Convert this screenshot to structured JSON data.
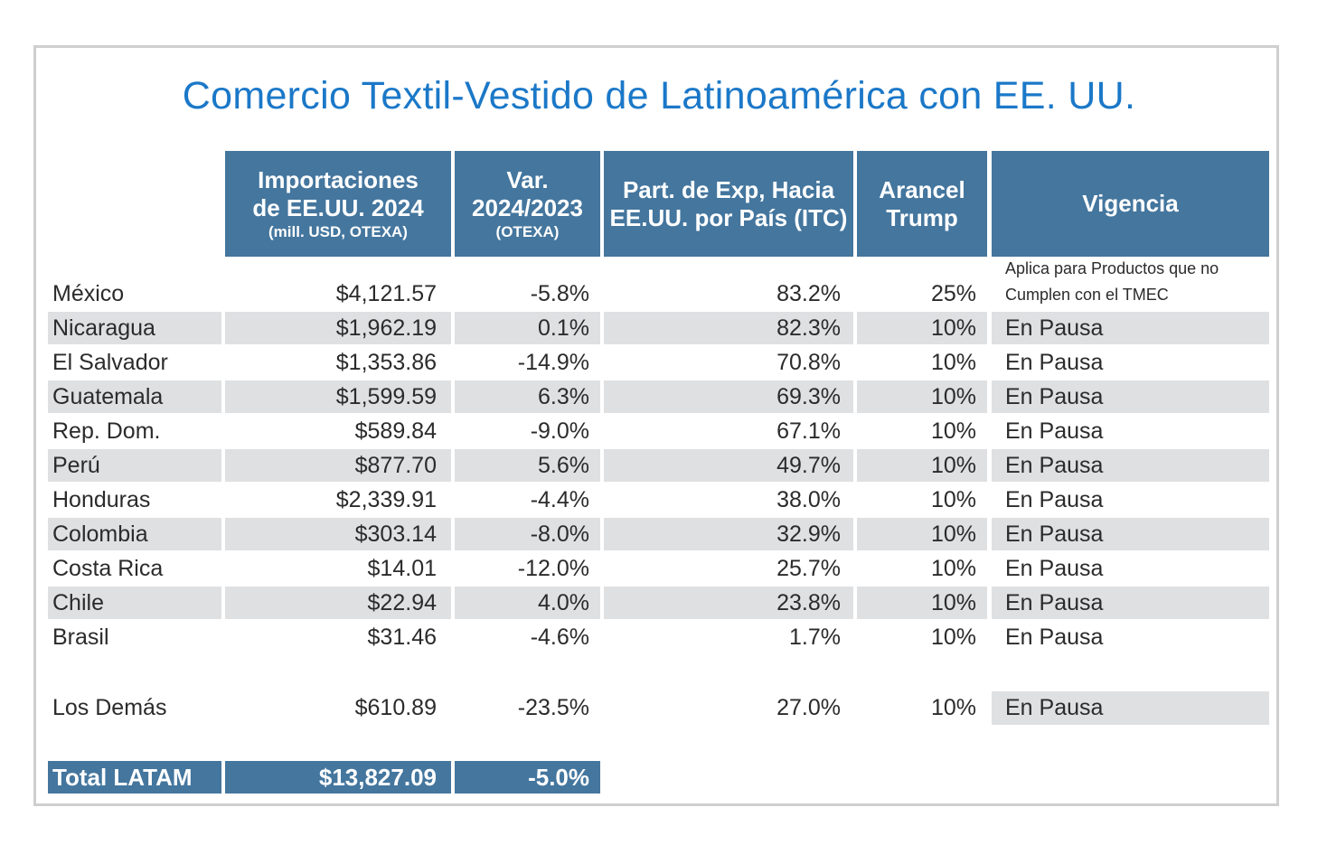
{
  "title": "Comercio Textil-Vestido de Latinoamérica con EE. UU.",
  "headers": {
    "imp": {
      "line1": "Importaciones",
      "line2": "de EE.UU. 2024",
      "sub": "(mill. USD, OTEXA)"
    },
    "var": {
      "line1": "Var.",
      "line2": "2024/2023",
      "sub": "(OTEXA)"
    },
    "part": {
      "line1": "Part. de Exp, Hacia",
      "line2": "EE.UU. por País (ITC)"
    },
    "arancel": {
      "line1": "Arancel",
      "line2": "Trump"
    },
    "vigencia": {
      "line1": "Vigencia"
    }
  },
  "rows": [
    {
      "country": "México",
      "imp": "$4,121.57",
      "var": "-5.8%",
      "part": "83.2%",
      "arancel": "25%",
      "vigencia": "",
      "vigencia_note": [
        "Aplica para Productos que no",
        "Cumplen con el TMEC"
      ]
    },
    {
      "country": "Nicaragua",
      "imp": "$1,962.19",
      "var": "0.1%",
      "part": "82.3%",
      "arancel": "10%",
      "vigencia": "En Pausa"
    },
    {
      "country": "El Salvador",
      "imp": "$1,353.86",
      "var": "-14.9%",
      "part": "70.8%",
      "arancel": "10%",
      "vigencia": "En Pausa"
    },
    {
      "country": "Guatemala",
      "imp": "$1,599.59",
      "var": "6.3%",
      "part": "69.3%",
      "arancel": "10%",
      "vigencia": "En Pausa"
    },
    {
      "country": "Rep. Dom.",
      "imp": "$589.84",
      "var": "-9.0%",
      "part": "67.1%",
      "arancel": "10%",
      "vigencia": "En Pausa"
    },
    {
      "country": "Perú",
      "imp": "$877.70",
      "var": "5.6%",
      "part": "49.7%",
      "arancel": "10%",
      "vigencia": "En Pausa"
    },
    {
      "country": "Honduras",
      "imp": "$2,339.91",
      "var": "-4.4%",
      "part": "38.0%",
      "arancel": "10%",
      "vigencia": "En Pausa"
    },
    {
      "country": "Colombia",
      "imp": "$303.14",
      "var": "-8.0%",
      "part": "32.9%",
      "arancel": "10%",
      "vigencia": "En Pausa"
    },
    {
      "country": "Costa Rica",
      "imp": "$14.01",
      "var": "-12.0%",
      "part": "25.7%",
      "arancel": "10%",
      "vigencia": "En Pausa"
    },
    {
      "country": "Chile",
      "imp": "$22.94",
      "var": "4.0%",
      "part": "23.8%",
      "arancel": "10%",
      "vigencia": "En Pausa"
    },
    {
      "country": "Brasil",
      "imp": "$31.46",
      "var": "-4.6%",
      "part": "1.7%",
      "arancel": "10%",
      "vigencia": "En Pausa"
    }
  ],
  "others": {
    "country": "Los Demás",
    "imp": "$610.89",
    "var": "-23.5%",
    "part": "27.0%",
    "arancel": "10%",
    "vigencia": "En Pausa"
  },
  "total": {
    "label": "Total LATAM",
    "imp": "$13,827.09",
    "var": "-5.0%"
  },
  "colors": {
    "title": "#1b78c8",
    "header": "#44769e",
    "shade": "#dfe0e2"
  }
}
